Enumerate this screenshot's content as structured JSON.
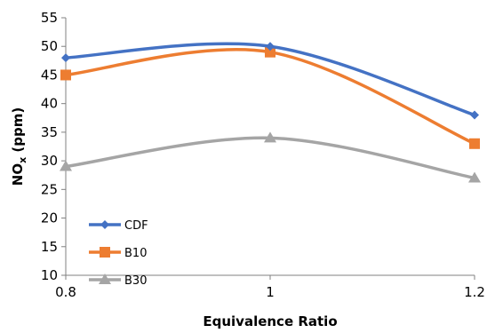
{
  "chart_data": {
    "type": "line",
    "smooth": true,
    "title": "",
    "xlabel": "Equivalence Ratio",
    "ylabel": {
      "main": "NO",
      "sub": "x",
      "suffix": " (ppm)"
    },
    "x": [
      0.8,
      1,
      1.2
    ],
    "xticks": [
      "0.8",
      "1",
      "1.2"
    ],
    "ylim": [
      10,
      55
    ],
    "yticks": [
      10,
      15,
      20,
      25,
      30,
      35,
      40,
      45,
      50,
      55
    ],
    "grid": false,
    "legend_position": "bottom-left",
    "series": [
      {
        "name": "CDF",
        "values": [
          48,
          50,
          38
        ],
        "color": "#4472C4",
        "marker": "diamond"
      },
      {
        "name": "B10",
        "values": [
          45,
          49,
          33
        ],
        "color": "#ED7D31",
        "marker": "square"
      },
      {
        "name": "B30",
        "values": [
          29,
          34,
          27
        ],
        "color": "#A5A5A5",
        "marker": "triangle"
      }
    ]
  }
}
